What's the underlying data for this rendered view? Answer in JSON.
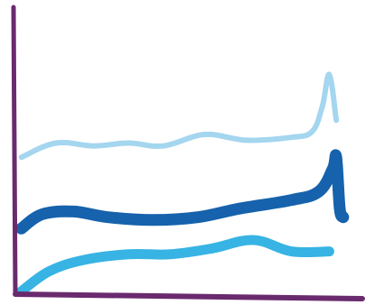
{
  "chart_data": {
    "type": "line",
    "title": "",
    "xlabel": "",
    "ylabel": "",
    "grid": false,
    "xlim": [
      0,
      100
    ],
    "ylim": [
      0,
      100
    ],
    "axis_color": "#6a2a6e",
    "series": [
      {
        "color": "#9fd4ee",
        "points": [
          [
            2,
            48
          ],
          [
            12,
            53
          ],
          [
            23,
            52
          ],
          [
            33,
            53
          ],
          [
            43,
            52
          ],
          [
            55,
            56
          ],
          [
            67,
            54
          ],
          [
            80,
            55
          ],
          [
            86,
            57
          ],
          [
            89,
            66
          ],
          [
            91,
            77
          ],
          [
            93,
            61
          ]
        ]
      },
      {
        "color": "#0a5aa8",
        "points": [
          [
            2,
            23
          ],
          [
            8,
            28
          ],
          [
            17,
            29
          ],
          [
            27,
            27
          ],
          [
            40,
            26
          ],
          [
            53,
            27
          ],
          [
            65,
            30
          ],
          [
            80,
            33
          ],
          [
            88,
            36
          ],
          [
            92,
            44
          ],
          [
            93,
            48
          ],
          [
            94,
            30
          ],
          [
            95,
            27
          ]
        ]
      },
      {
        "color": "#2cb0e2",
        "points": [
          [
            2,
            1
          ],
          [
            10,
            8
          ],
          [
            20,
            12
          ],
          [
            33,
            14
          ],
          [
            45,
            14
          ],
          [
            57,
            16
          ],
          [
            69,
            19
          ],
          [
            80,
            15
          ],
          [
            91,
            15
          ]
        ]
      }
    ]
  }
}
